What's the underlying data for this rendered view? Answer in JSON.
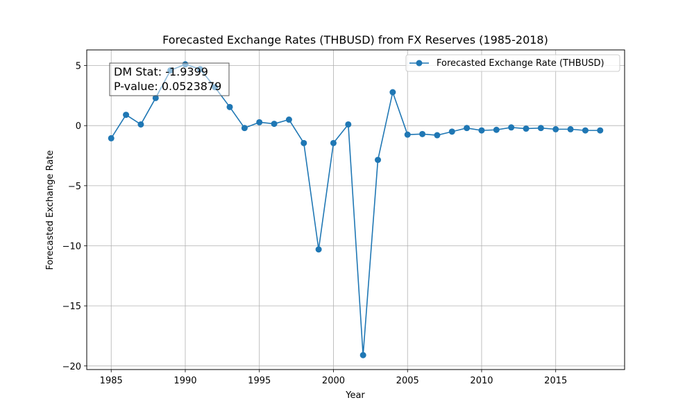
{
  "chart_data": {
    "type": "line",
    "title": "Forecasted Exchange Rates (THBUSD) from FX Reserves (1985-2018)",
    "xlabel": "Year",
    "ylabel": "Forecasted Exchange Rate",
    "xlim": [
      1983.35,
      2019.65
    ],
    "ylim": [
      -20.3,
      6.3
    ],
    "x_ticks": [
      1985,
      1990,
      1995,
      2000,
      2005,
      2010,
      2015
    ],
    "y_ticks": [
      5,
      0,
      -5,
      -10,
      -15,
      -20
    ],
    "y_tick_labels": [
      "5",
      "0",
      "−5",
      "−10",
      "−15",
      "−20"
    ],
    "grid": true,
    "legend_position": "upper right",
    "series": [
      {
        "name": "Forecasted Exchange Rate (THBUSD)",
        "color": "#1f77b4",
        "x": [
          1985,
          1986,
          1987,
          1988,
          1989,
          1990,
          1991,
          1992,
          1993,
          1994,
          1995,
          1996,
          1997,
          1998,
          1999,
          2000,
          2001,
          2002,
          2003,
          2004,
          2005,
          2006,
          2007,
          2008,
          2009,
          2010,
          2011,
          2012,
          2013,
          2014,
          2015,
          2016,
          2017,
          2018
        ],
        "values": [
          -1.05,
          0.9,
          0.1,
          2.3,
          4.6,
          5.1,
          4.7,
          3.2,
          1.55,
          -0.2,
          0.28,
          0.15,
          0.5,
          -1.45,
          -10.3,
          -1.45,
          0.1,
          -19.1,
          -2.85,
          2.78,
          -0.75,
          -0.7,
          -0.8,
          -0.5,
          -0.2,
          -0.4,
          -0.35,
          -0.15,
          -0.25,
          -0.2,
          -0.3,
          -0.3,
          -0.4,
          -0.4
        ]
      }
    ],
    "annotation": {
      "line1": "DM Stat: -1.9399",
      "line2": "P-value: 0.0523879"
    }
  }
}
